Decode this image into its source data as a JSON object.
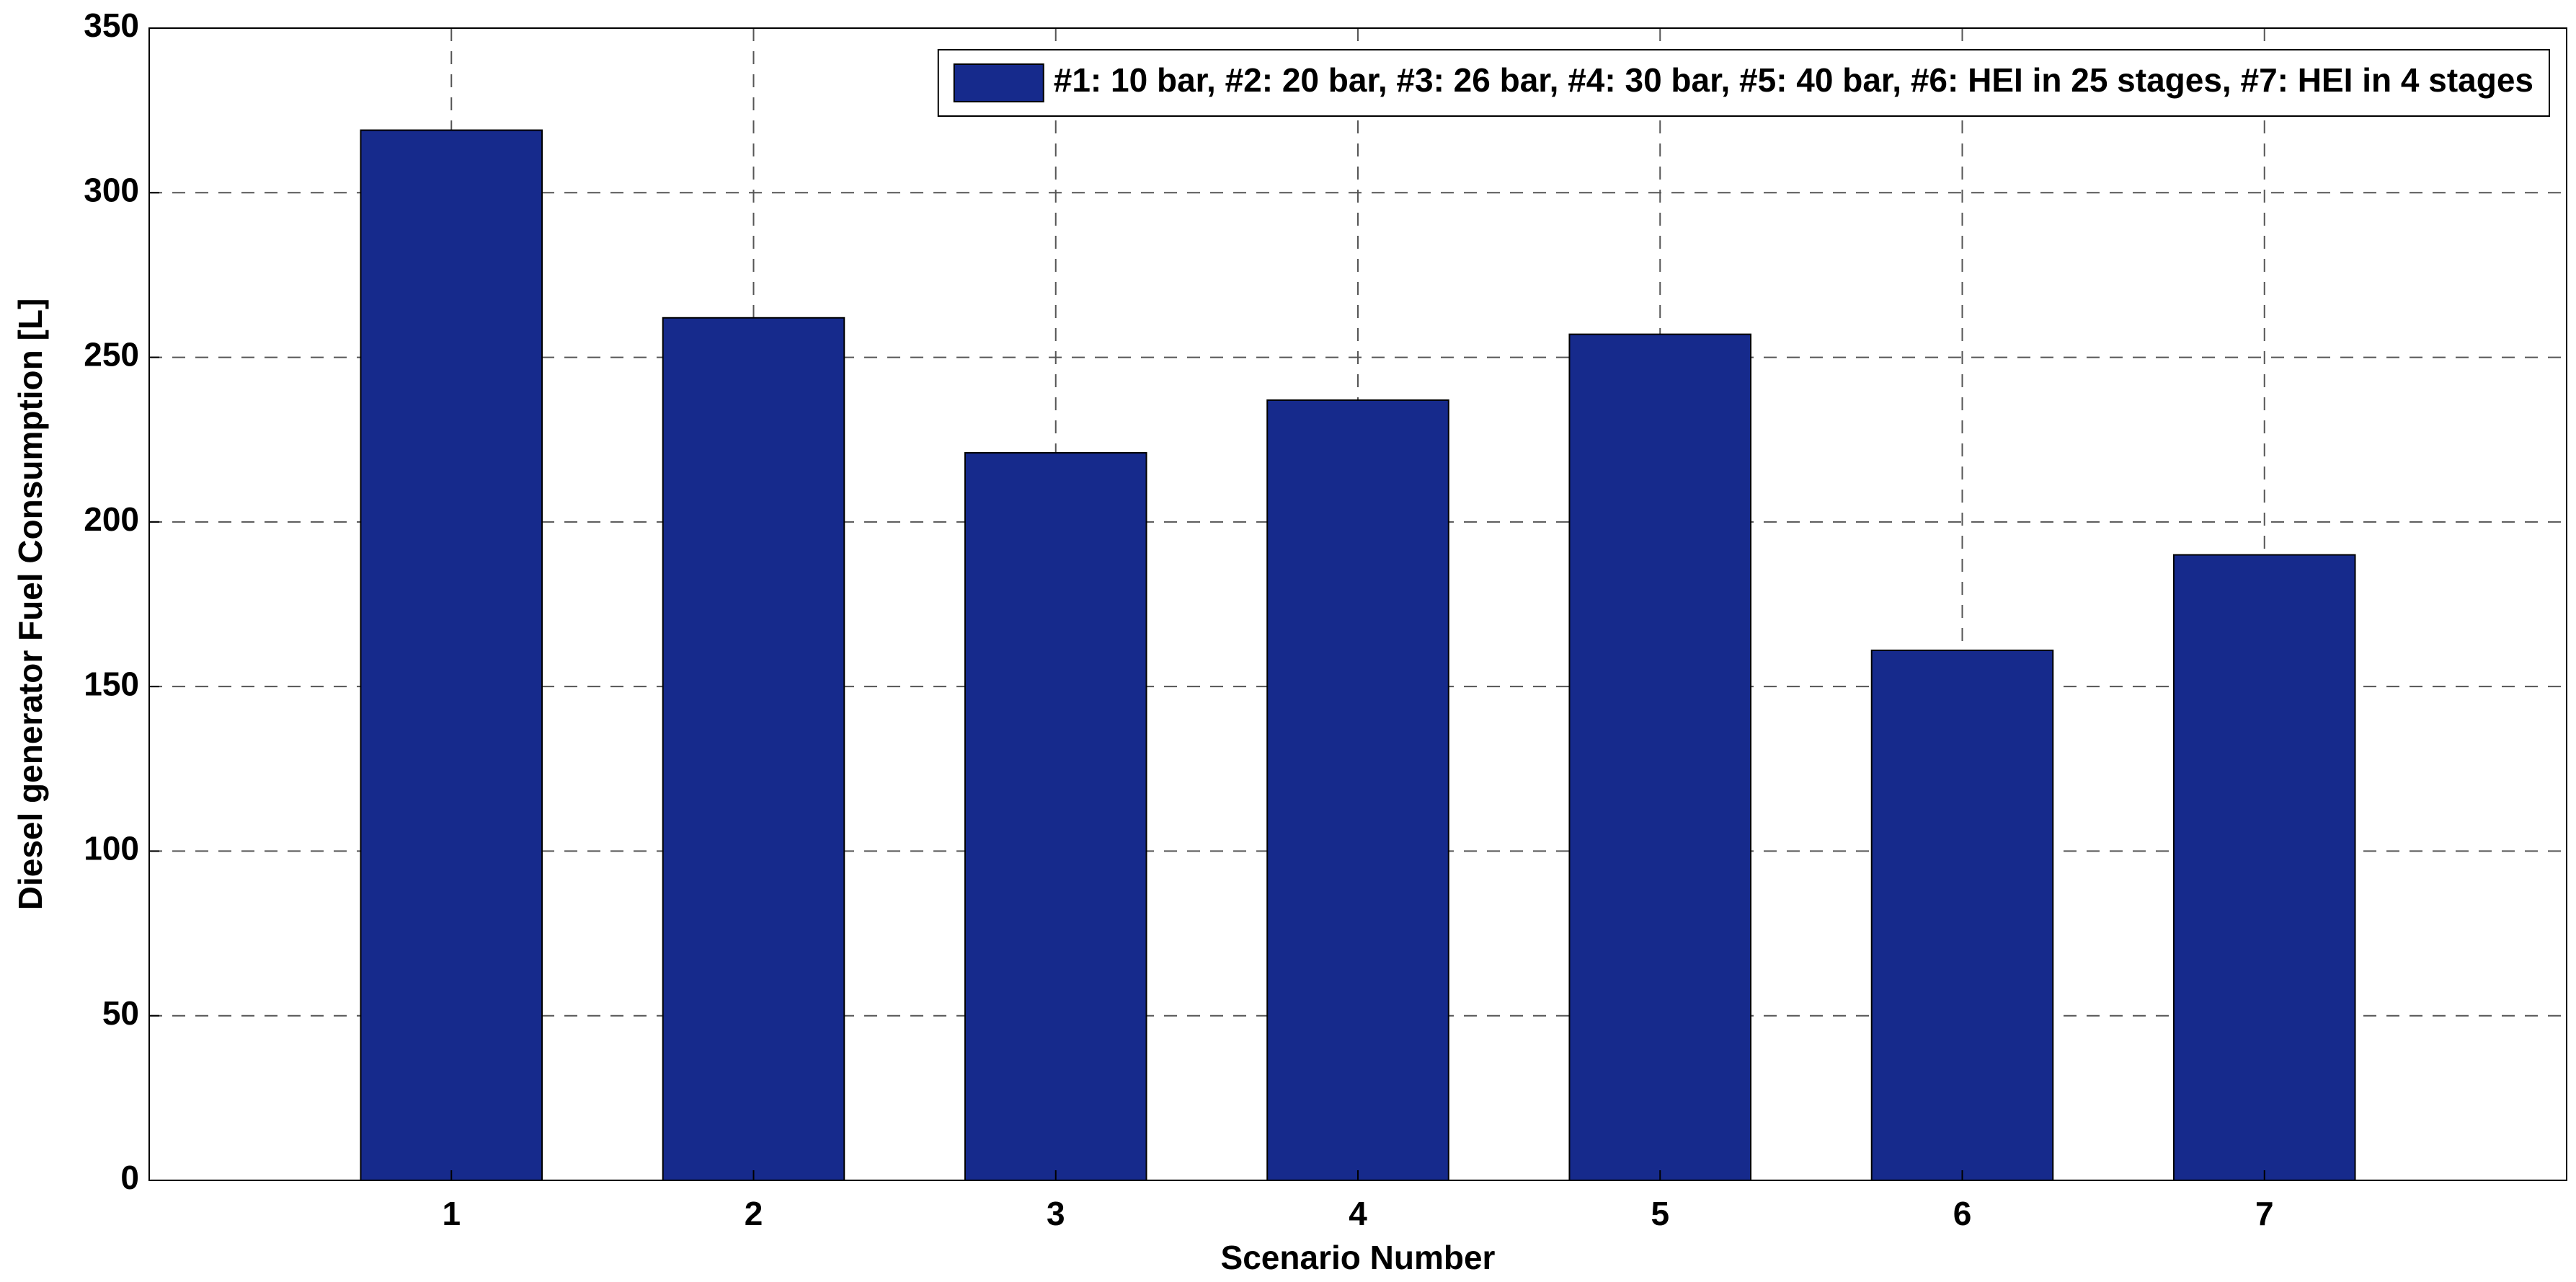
{
  "chart_data": {
    "type": "bar",
    "x_label": "Scenario Number",
    "y_label": "Diesel generator Fuel Consumption [L]",
    "x": [
      1,
      2,
      3,
      4,
      5,
      6,
      7
    ],
    "series": [
      {
        "name": "#1: 10 bar, #2: 20 bar, #3: 26 bar, #4: 30 bar, #5: 40 bar, #6: HEI in 25 stages, #7: HEI in 4 stages",
        "color": "#162a8c",
        "values": [
          319,
          262,
          221,
          237,
          257,
          161,
          190
        ]
      }
    ],
    "xlim": [
      0,
      8
    ],
    "xticks": [
      1,
      2,
      3,
      4,
      5,
      6,
      7
    ],
    "ylim": [
      0,
      350
    ],
    "yticks": [
      0,
      50,
      100,
      150,
      200,
      250,
      300,
      350
    ],
    "grid": true,
    "legend": "upper-right"
  }
}
